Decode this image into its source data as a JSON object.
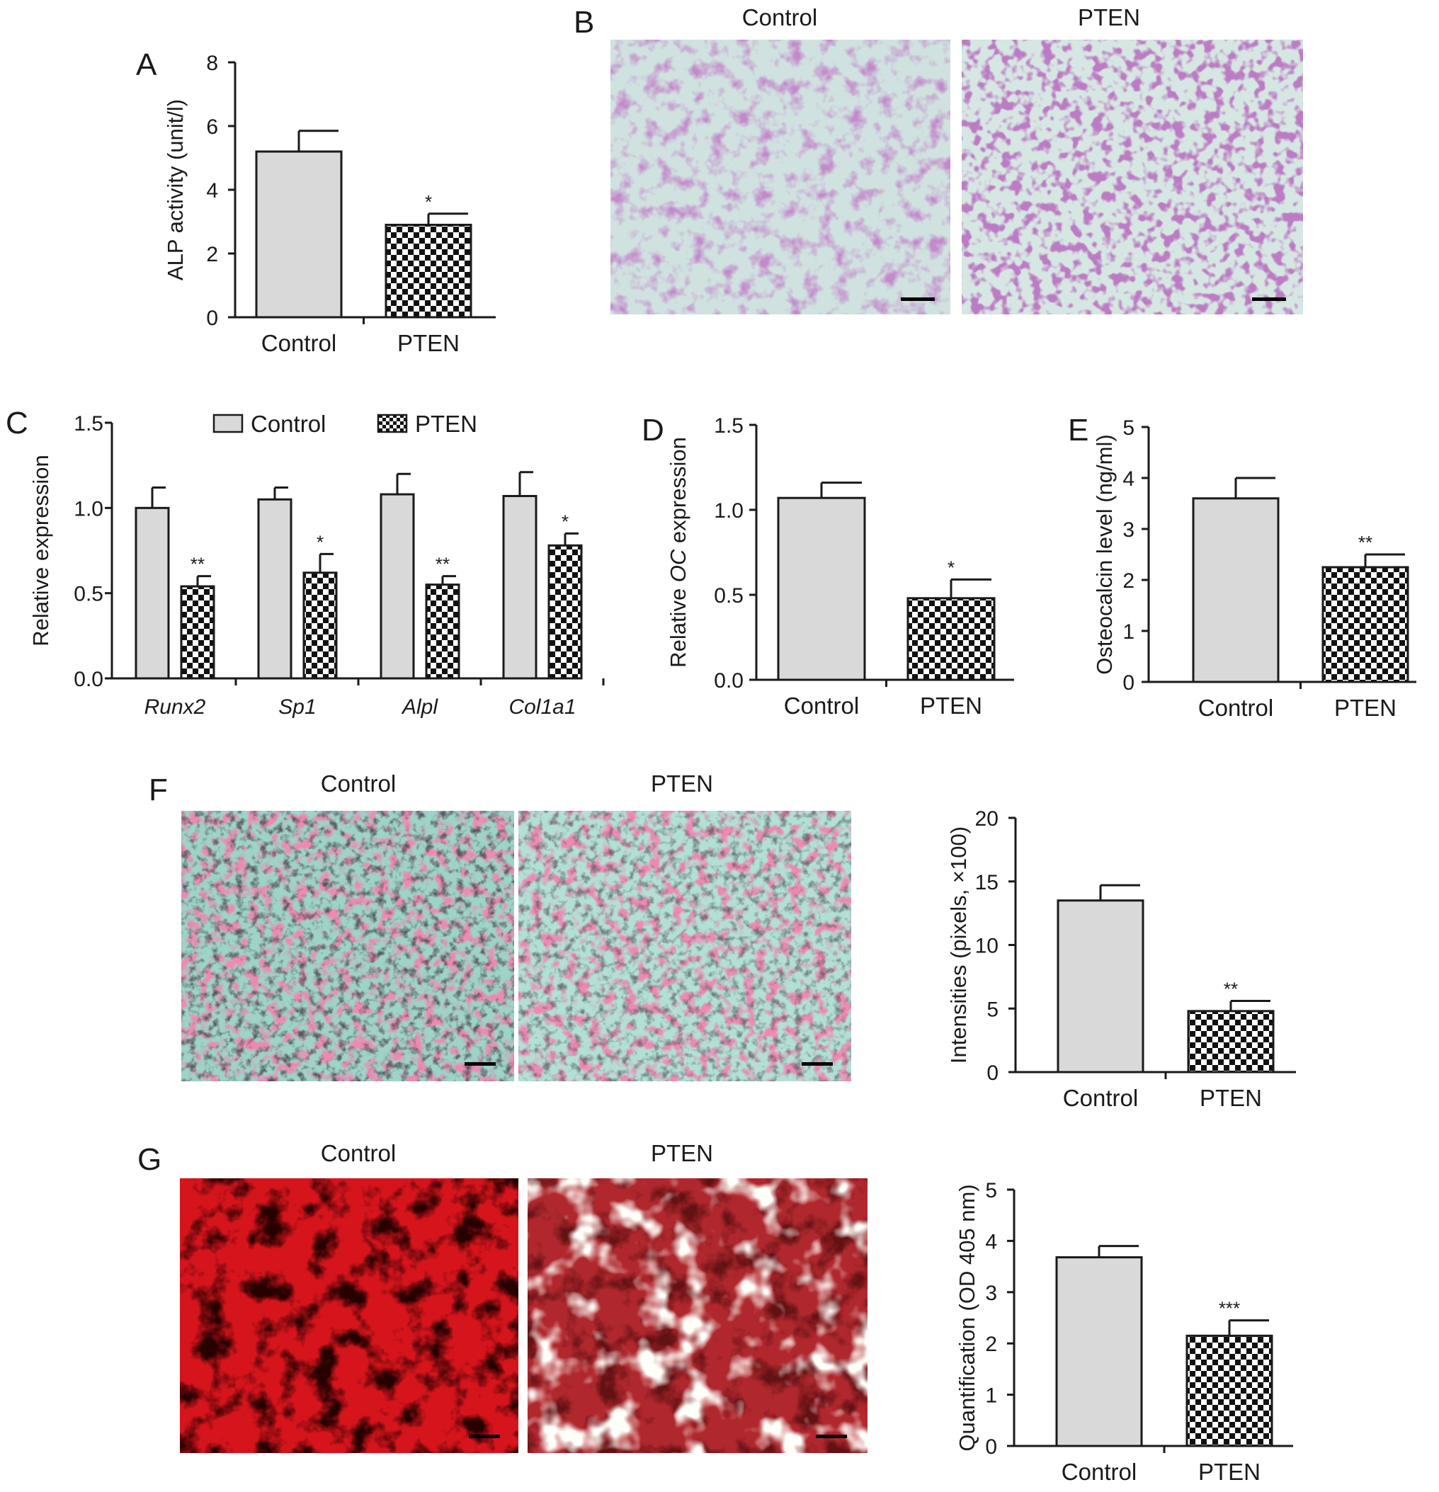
{
  "colors": {
    "control_fill": "#d9d9d9",
    "checker_dark": "#111111",
    "axis": "#1a1a1a"
  },
  "panels": {
    "A": {
      "letter": "A"
    },
    "B": {
      "letter": "B",
      "captions": [
        "Control",
        "PTEN"
      ]
    },
    "C": {
      "letter": "C",
      "legend": [
        "Control",
        "PTEN"
      ]
    },
    "D": {
      "letter": "D"
    },
    "E": {
      "letter": "E"
    },
    "F": {
      "letter": "F",
      "captions": [
        "Control",
        "PTEN"
      ]
    },
    "G": {
      "letter": "G",
      "captions": [
        "Control",
        "PTEN"
      ]
    }
  },
  "chart_data": [
    {
      "panel": "A",
      "type": "bar",
      "categories": [
        "Control",
        "PTEN"
      ],
      "values": [
        5.2,
        2.9
      ],
      "errors": [
        0.65,
        0.35
      ],
      "significance": [
        "",
        "*"
      ],
      "ylabel": "ALP activity (unit/l)",
      "ylim": [
        0,
        8
      ],
      "yticks": [
        "0",
        "2",
        "4",
        "6",
        "8"
      ],
      "grid": false
    },
    {
      "panel": "C",
      "type": "bar",
      "categories": [
        "Runx2",
        "Sp1",
        "Alpl",
        "Col1a1"
      ],
      "series": [
        {
          "name": "Control",
          "values": [
            1.0,
            1.05,
            1.08,
            1.07
          ],
          "errors": [
            0.12,
            0.07,
            0.12,
            0.14
          ],
          "significance": [
            "",
            "",
            "",
            ""
          ]
        },
        {
          "name": "PTEN",
          "values": [
            0.54,
            0.62,
            0.55,
            0.78
          ],
          "errors": [
            0.06,
            0.11,
            0.05,
            0.07
          ],
          "significance": [
            "**",
            "*",
            "**",
            "*"
          ]
        }
      ],
      "ylabel": "Relative expression",
      "ylim": [
        0,
        1.5
      ],
      "yticks": [
        "0.0",
        "0.5",
        "1.0",
        "1.5"
      ],
      "legend": "top",
      "grid": false
    },
    {
      "panel": "D",
      "type": "bar",
      "categories": [
        "Control",
        "PTEN"
      ],
      "values": [
        1.07,
        0.48
      ],
      "errors": [
        0.09,
        0.11
      ],
      "significance": [
        "",
        "*"
      ],
      "ylabel": "Relative OC expression",
      "ylim": [
        0,
        1.5
      ],
      "yticks": [
        "0.0",
        "0.5",
        "1.0",
        "1.5"
      ],
      "grid": false
    },
    {
      "panel": "E",
      "type": "bar",
      "categories": [
        "Control",
        "PTEN"
      ],
      "values": [
        3.6,
        2.25
      ],
      "errors": [
        0.4,
        0.25
      ],
      "significance": [
        "",
        "**"
      ],
      "ylabel": "Osteocalcin level (ng/ml)",
      "ylim": [
        0,
        5
      ],
      "yticks": [
        "0",
        "1",
        "2",
        "3",
        "4",
        "5"
      ],
      "grid": false
    },
    {
      "panel": "F",
      "type": "bar",
      "categories": [
        "Control",
        "PTEN"
      ],
      "values": [
        13.5,
        4.8
      ],
      "errors": [
        1.2,
        0.8
      ],
      "significance": [
        "",
        "**"
      ],
      "ylabel": "Intensities (pixels, ×100)",
      "ylim": [
        0,
        20
      ],
      "yticks": [
        "0",
        "5",
        "10",
        "15",
        "20"
      ],
      "grid": false
    },
    {
      "panel": "G",
      "type": "bar",
      "categories": [
        "Control",
        "PTEN"
      ],
      "values": [
        3.68,
        2.15
      ],
      "errors": [
        0.22,
        0.3
      ],
      "significance": [
        "",
        "***"
      ],
      "ylabel": "Quantification (OD 405 nm)",
      "ylim": [
        0,
        5
      ],
      "yticks": [
        "0",
        "1",
        "2",
        "3",
        "4",
        "5"
      ],
      "grid": false
    }
  ]
}
